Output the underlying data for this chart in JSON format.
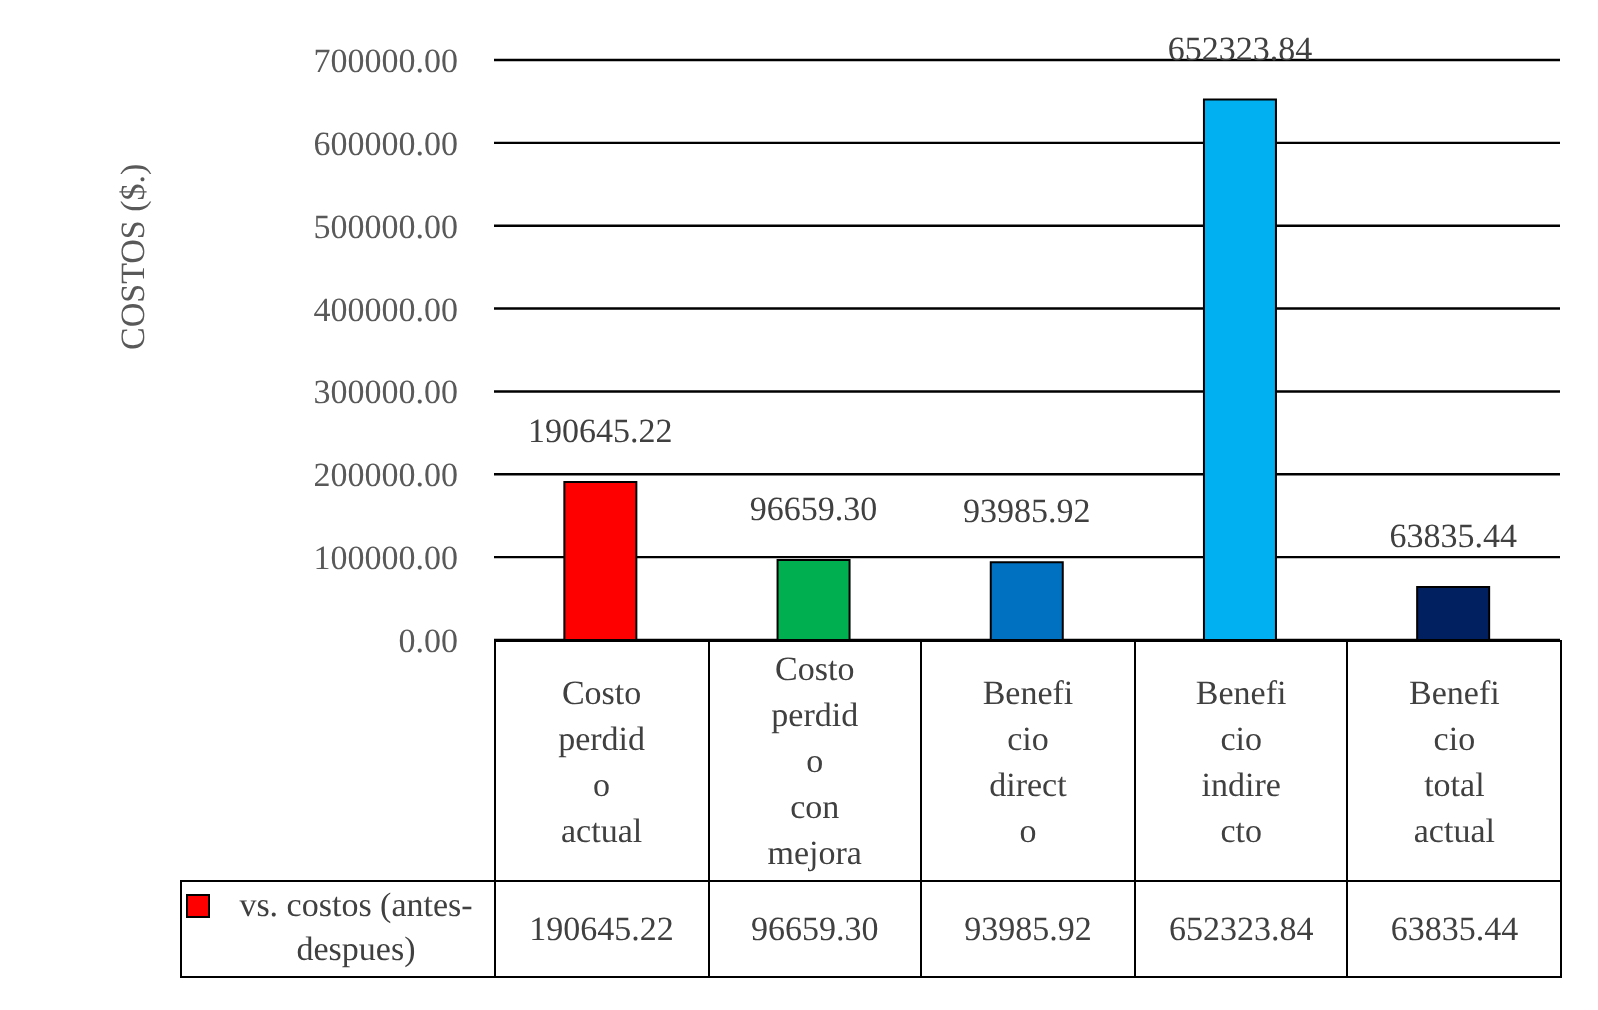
{
  "chart_data": {
    "type": "bar",
    "ylabel": "COSTOS ($.)",
    "categories": [
      "Costo perdido actual",
      "Costo perdido con mejora",
      "Beneficio directo",
      "Beneficio indirecto",
      "Beneficio total actual"
    ],
    "series": [
      {
        "name": "vs. costos (antes-despues)",
        "color": "#ff0000",
        "colors": [
          "#ff0000",
          "#00b050",
          "#0070c0",
          "#00b0f0",
          "#002060"
        ],
        "values": [
          190645.22,
          96659.3,
          93985.92,
          652323.84,
          63835.44
        ],
        "value_labels": [
          "190645.22",
          "96659.30",
          "93985.92",
          "652323.84",
          "63835.44"
        ]
      }
    ],
    "ylim": [
      0,
      700000
    ],
    "yticks": [
      {
        "value": 0,
        "label": "0.00"
      },
      {
        "value": 100000,
        "label": "100000.00"
      },
      {
        "value": 200000,
        "label": "200000.00"
      },
      {
        "value": 300000,
        "label": "300000.00"
      },
      {
        "value": 400000,
        "label": "400000.00"
      },
      {
        "value": 500000,
        "label": "500000.00"
      },
      {
        "value": 600000,
        "label": "600000.00"
      },
      {
        "value": 700000,
        "label": "700000.00"
      }
    ],
    "grid": "y",
    "legend": "bottom"
  }
}
